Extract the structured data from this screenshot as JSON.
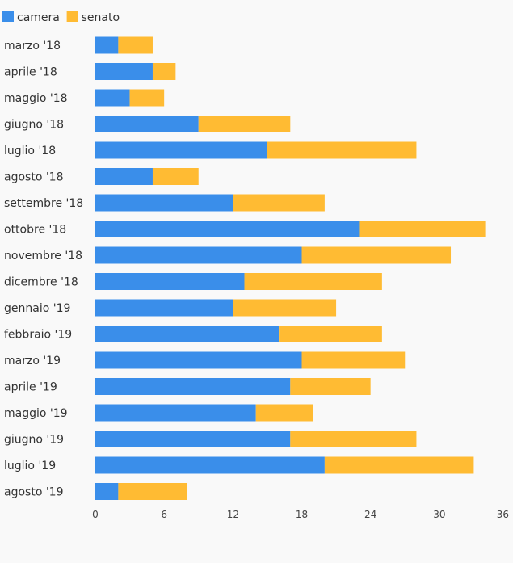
{
  "colors": {
    "background": "#f9f9f9",
    "camera": "#3a8eea",
    "senato": "#ffbb33",
    "text": "#333333",
    "tick_text": "#444444"
  },
  "chart_data": {
    "type": "bar",
    "orientation": "horizontal",
    "stacked": true,
    "title": "",
    "xlabel": "",
    "ylabel": "",
    "legend_position": "top-left",
    "grid": false,
    "xlim": [
      0,
      36
    ],
    "xticks": [
      0,
      6,
      12,
      18,
      24,
      30,
      36
    ],
    "categories": [
      "marzo '18",
      "aprile '18",
      "maggio '18",
      "giugno '18",
      "luglio '18",
      "agosto '18",
      "settembre '18",
      "ottobre '18",
      "novembre '18",
      "dicembre '18",
      "gennaio '19",
      "febbraio '19",
      "marzo '19",
      "aprile '19",
      "maggio '19",
      "giugno '19",
      "luglio '19",
      "agosto '19"
    ],
    "series": [
      {
        "name": "camera",
        "color": "#3a8eea",
        "values": [
          2,
          5,
          3,
          9,
          15,
          5,
          12,
          23,
          18,
          13,
          12,
          16,
          18,
          17,
          14,
          17,
          20,
          2
        ]
      },
      {
        "name": "senato",
        "color": "#ffbb33",
        "values": [
          3,
          2,
          3,
          8,
          13,
          4,
          8,
          11,
          13,
          12,
          9,
          9,
          9,
          7,
          5,
          11,
          13,
          6
        ]
      }
    ]
  }
}
